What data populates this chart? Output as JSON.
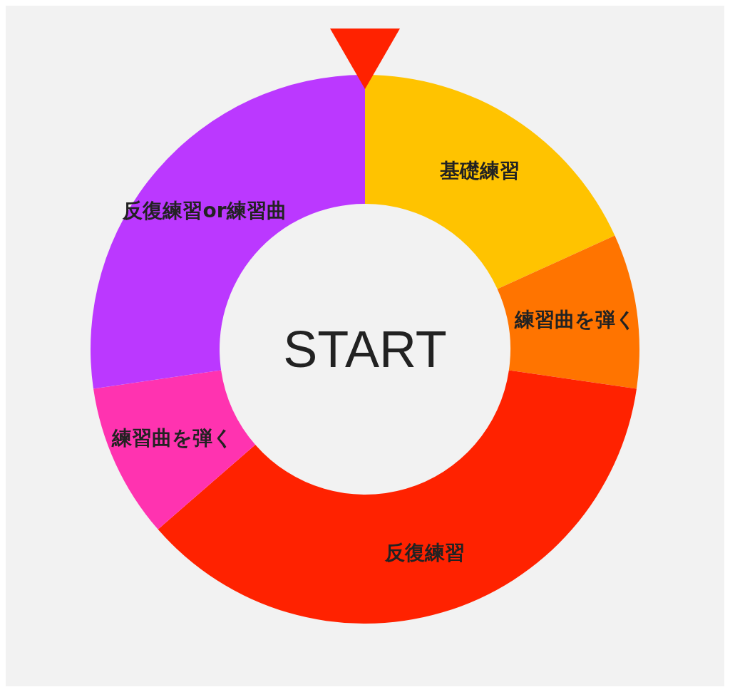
{
  "chart_data": {
    "type": "donut",
    "categories": [
      "基礎練習",
      "練習曲を弾く",
      "反復練習",
      "練習曲を弾く",
      "反復練習or練習曲"
    ],
    "values": [
      18.2,
      9.1,
      36.3,
      9.1,
      27.3
    ],
    "colors": [
      "#ffc300",
      "#ff7400",
      "#ff2200",
      "#ff33b0",
      "#bb38ff"
    ],
    "annotations": [
      "START"
    ]
  }
}
